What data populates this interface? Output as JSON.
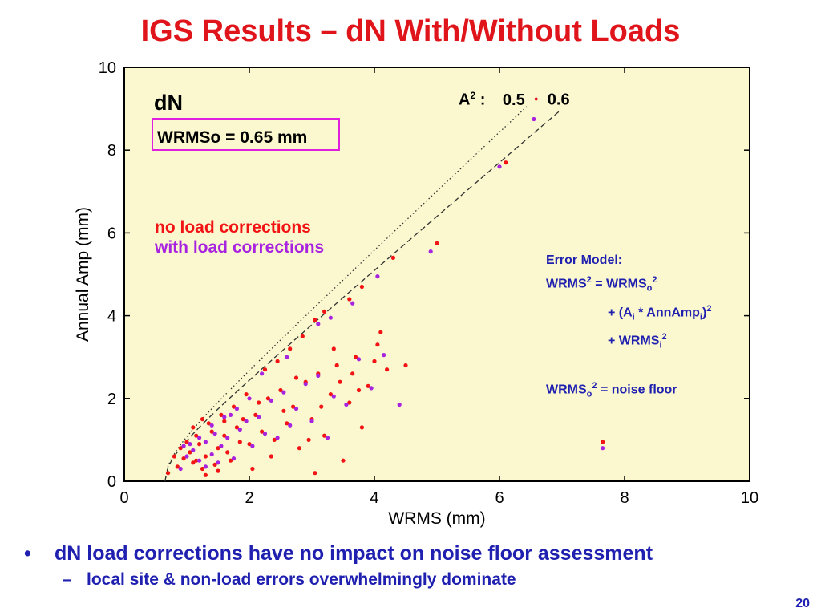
{
  "slide": {
    "title": "IGS Results – dN With/Without Loads",
    "page_number": "20",
    "bullet_1": "dN load corrections have no impact on noise floor assessment",
    "bullet_1_marker": "•",
    "bullet_2": "local site & non-load errors overwhelmingly dominate",
    "bullet_2_marker": "–"
  },
  "error_model": {
    "heading": "Error Model",
    "heading_suffix": ":",
    "line1_a": "WRMS",
    "line1_b": " = WRMS",
    "line1_sub": "o",
    "line2_a": "+  (A",
    "line2_sub1": "i",
    "line2_b": " * AnnAmp",
    "line2_sub2": "i",
    "line2_c": ")",
    "line3_a": "+  WRMS",
    "line3_sub": "i",
    "line4_a": "WRMS",
    "line4_sub": "o",
    "line4_b": " = noise floor",
    "sup2": "2"
  },
  "a2_legend": {
    "label": "A",
    "label_sup": "2",
    "label_suffix": " :",
    "value_dotted": "0.5",
    "value_dashed": "0.6",
    "dot": "•"
  },
  "chart_data": {
    "type": "scatter",
    "panel_label": "dN",
    "annotation": "WRMSo = 0.65 mm",
    "xlabel": "WRMS (mm)",
    "ylabel": "Annual Amp (mm)",
    "xlim": [
      0,
      10
    ],
    "ylim": [
      0,
      10
    ],
    "xticks": [
      0,
      2,
      4,
      6,
      8,
      10
    ],
    "yticks": [
      0,
      2,
      4,
      6,
      8,
      10
    ],
    "grid": false,
    "background": "#fbf8cf",
    "series": [
      {
        "name": "no load corrections",
        "color": "#f21414",
        "points": [
          [
            0.85,
            0.35
          ],
          [
            0.95,
            0.55
          ],
          [
            1.05,
            0.7
          ],
          [
            1.1,
            0.45
          ],
          [
            1.2,
            0.9
          ],
          [
            1.3,
            0.6
          ],
          [
            1.15,
            1.1
          ],
          [
            0.9,
            0.8
          ],
          [
            1.25,
            0.3
          ],
          [
            1.4,
            1.2
          ],
          [
            1.5,
            0.8
          ],
          [
            1.35,
            1.4
          ],
          [
            1.6,
            1.1
          ],
          [
            1.7,
            0.5
          ],
          [
            1.8,
            1.3
          ],
          [
            1.55,
            1.6
          ],
          [
            1.0,
            0.95
          ],
          [
            1.45,
            0.4
          ],
          [
            1.9,
            1.5
          ],
          [
            2.0,
            0.9
          ],
          [
            2.1,
            1.6
          ],
          [
            1.75,
            1.8
          ],
          [
            2.2,
            1.2
          ],
          [
            2.3,
            2.0
          ],
          [
            1.65,
            0.7
          ],
          [
            2.4,
            1.0
          ],
          [
            2.5,
            2.2
          ],
          [
            2.6,
            1.4
          ],
          [
            2.7,
            1.8
          ],
          [
            2.8,
            0.8
          ],
          [
            2.9,
            2.4
          ],
          [
            3.0,
            1.5
          ],
          [
            3.1,
            2.6
          ],
          [
            3.2,
            1.1
          ],
          [
            3.3,
            2.1
          ],
          [
            3.4,
            2.8
          ],
          [
            3.5,
            0.5
          ],
          [
            3.6,
            1.9
          ],
          [
            3.7,
            3.0
          ],
          [
            3.8,
            1.3
          ],
          [
            3.9,
            2.3
          ],
          [
            4.0,
            2.9
          ],
          [
            4.1,
            3.6
          ],
          [
            4.2,
            2.7
          ],
          [
            4.5,
            2.8
          ],
          [
            3.05,
            3.9
          ],
          [
            3.2,
            4.1
          ],
          [
            3.6,
            4.4
          ],
          [
            3.8,
            4.7
          ],
          [
            4.3,
            5.4
          ],
          [
            5.0,
            5.75
          ],
          [
            6.1,
            7.7
          ],
          [
            7.65,
            0.95
          ],
          [
            2.15,
            1.9
          ],
          [
            2.35,
            0.6
          ],
          [
            2.55,
            1.7
          ],
          [
            2.75,
            2.5
          ],
          [
            2.95,
            1.0
          ],
          [
            3.15,
            1.8
          ],
          [
            3.45,
            2.4
          ],
          [
            3.65,
            2.6
          ],
          [
            1.25,
            1.5
          ],
          [
            1.1,
            1.3
          ],
          [
            0.8,
            0.6
          ],
          [
            1.3,
            0.15
          ],
          [
            1.5,
            0.25
          ],
          [
            2.05,
            0.3
          ],
          [
            0.7,
            0.2
          ],
          [
            1.6,
            1.45
          ],
          [
            1.85,
            0.95
          ],
          [
            2.25,
            2.7
          ],
          [
            2.65,
            3.2
          ],
          [
            2.45,
            2.9
          ],
          [
            3.35,
            3.2
          ],
          [
            3.75,
            2.2
          ],
          [
            4.05,
            3.3
          ],
          [
            2.85,
            3.5
          ],
          [
            3.05,
            0.2
          ],
          [
            1.95,
            2.1
          ],
          [
            1.15,
            0.5
          ]
        ]
      },
      {
        "name": "with load corrections",
        "color": "#a823e0",
        "points": [
          [
            0.9,
            0.3
          ],
          [
            1.0,
            0.6
          ],
          [
            1.1,
            0.75
          ],
          [
            1.2,
            0.5
          ],
          [
            1.3,
            0.95
          ],
          [
            1.4,
            0.65
          ],
          [
            1.2,
            1.05
          ],
          [
            0.95,
            0.85
          ],
          [
            1.3,
            0.35
          ],
          [
            1.45,
            1.15
          ],
          [
            1.55,
            0.85
          ],
          [
            1.4,
            1.35
          ],
          [
            1.65,
            1.05
          ],
          [
            1.75,
            0.55
          ],
          [
            1.85,
            1.25
          ],
          [
            1.6,
            1.55
          ],
          [
            1.05,
            0.9
          ],
          [
            1.5,
            0.45
          ],
          [
            1.95,
            1.45
          ],
          [
            2.05,
            0.85
          ],
          [
            2.15,
            1.55
          ],
          [
            1.8,
            1.75
          ],
          [
            2.25,
            1.15
          ],
          [
            2.35,
            1.95
          ],
          [
            2.45,
            1.05
          ],
          [
            2.55,
            2.15
          ],
          [
            2.65,
            1.35
          ],
          [
            2.75,
            1.75
          ],
          [
            2.9,
            2.35
          ],
          [
            3.0,
            1.45
          ],
          [
            3.1,
            2.55
          ],
          [
            3.25,
            1.05
          ],
          [
            3.35,
            2.05
          ],
          [
            3.55,
            1.85
          ],
          [
            3.75,
            2.95
          ],
          [
            3.95,
            2.25
          ],
          [
            4.15,
            3.05
          ],
          [
            4.4,
            1.85
          ],
          [
            4.9,
            5.55
          ],
          [
            6.0,
            7.6
          ],
          [
            6.55,
            8.75
          ],
          [
            7.65,
            0.8
          ],
          [
            3.1,
            3.8
          ],
          [
            3.65,
            4.3
          ],
          [
            4.05,
            4.95
          ],
          [
            3.3,
            3.95
          ],
          [
            2.2,
            2.6
          ],
          [
            2.6,
            3.0
          ],
          [
            1.7,
            1.6
          ],
          [
            2.0,
            2.0
          ]
        ]
      }
    ],
    "reference_lines": [
      {
        "name": "0.5",
        "style": "dotted",
        "a2": 0.5
      },
      {
        "name": "0.6",
        "style": "dashed",
        "a2": 0.6
      }
    ],
    "wrms_o": 0.65
  }
}
